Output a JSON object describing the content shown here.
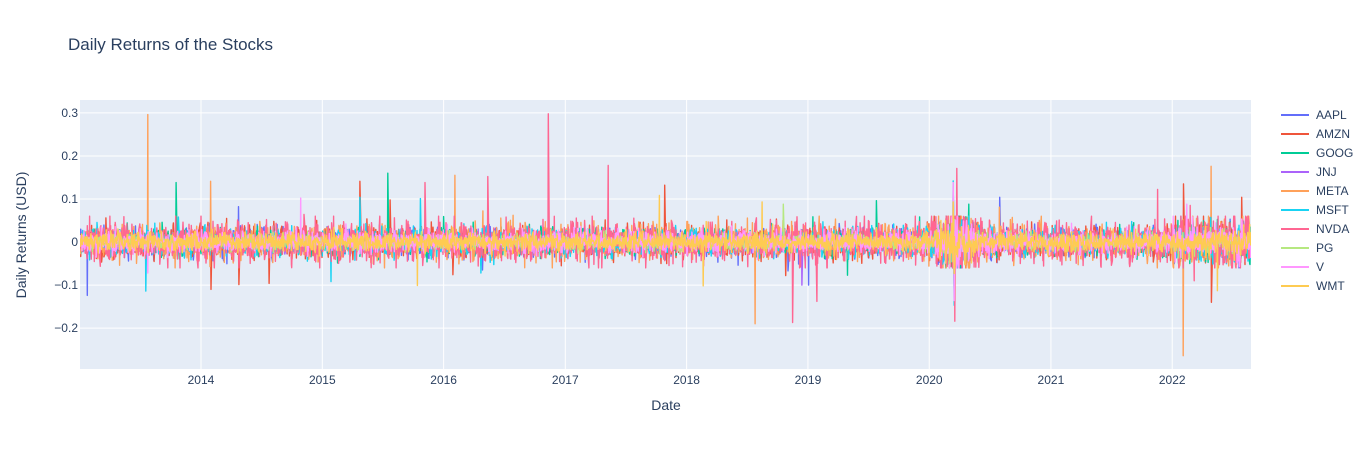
{
  "chart_data": {
    "type": "line",
    "title": "Daily Returns of the Stocks",
    "xlabel": "Date",
    "ylabel": "Daily Returns (USD)",
    "x_range": [
      "2013-01-02",
      "2022-08-26"
    ],
    "ylim": [
      -0.295,
      0.33
    ],
    "x_ticks": [
      "2014",
      "2015",
      "2016",
      "2017",
      "2018",
      "2019",
      "2020",
      "2021",
      "2022"
    ],
    "y_ticks": [
      {
        "value": 0.3,
        "label": "0.3"
      },
      {
        "value": 0.2,
        "label": "0.2"
      },
      {
        "value": 0.1,
        "label": "0.1"
      },
      {
        "value": 0,
        "label": "0"
      },
      {
        "value": -0.1,
        "label": "−0.1"
      },
      {
        "value": -0.2,
        "label": "−0.2"
      }
    ],
    "grid": true,
    "legend_position": "right",
    "series": [
      {
        "name": "AAPL",
        "color": "#636efa",
        "base_vol": 0.016,
        "spikes": [
          [
            "2013-01-24",
            -0.124
          ],
          [
            "2014-04-24",
            0.082
          ],
          [
            "2016-04-27",
            -0.065
          ],
          [
            "2018-11-02",
            -0.067
          ],
          [
            "2019-01-03",
            -0.1
          ],
          [
            "2020-03-13",
            0.12
          ],
          [
            "2020-07-31",
            0.104
          ],
          [
            "2022-04-29",
            -0.037
          ]
        ]
      },
      {
        "name": "AMZN",
        "color": "#ef553b",
        "base_vol": 0.018,
        "spikes": [
          [
            "2014-01-31",
            -0.11
          ],
          [
            "2014-04-25",
            -0.099
          ],
          [
            "2014-07-25",
            -0.096
          ],
          [
            "2015-04-24",
            0.141
          ],
          [
            "2015-07-24",
            0.098
          ],
          [
            "2016-01-29",
            -0.076
          ],
          [
            "2017-10-27",
            0.132
          ],
          [
            "2018-10-26",
            -0.078
          ],
          [
            "2020-03-13",
            0.064
          ],
          [
            "2022-02-04",
            0.135
          ],
          [
            "2022-04-29",
            -0.14
          ],
          [
            "2022-07-29",
            0.104
          ]
        ]
      },
      {
        "name": "GOOG",
        "color": "#00cc96",
        "base_vol": 0.015,
        "spikes": [
          [
            "2013-10-18",
            0.138
          ],
          [
            "2015-07-17",
            0.16
          ],
          [
            "2016-04-22",
            -0.054
          ],
          [
            "2019-04-30",
            -0.077
          ],
          [
            "2019-07-26",
            0.096
          ],
          [
            "2020-03-16",
            -0.111
          ],
          [
            "2020-04-29",
            0.088
          ]
        ]
      },
      {
        "name": "JNJ",
        "color": "#ab63fa",
        "base_vol": 0.009,
        "spikes": [
          [
            "2016-04-14",
            0.03
          ],
          [
            "2018-12-14",
            -0.1
          ],
          [
            "2020-03-13",
            0.08
          ],
          [
            "2020-03-16",
            -0.1
          ]
        ]
      },
      {
        "name": "META",
        "color": "#ffa15a",
        "base_vol": 0.02,
        "spikes": [
          [
            "2013-07-25",
            0.296
          ],
          [
            "2014-01-30",
            0.141
          ],
          [
            "2016-02-04",
            0.155
          ],
          [
            "2016-04-28",
            0.072
          ],
          [
            "2016-07-28",
            0.062
          ],
          [
            "2018-07-26",
            -0.19
          ],
          [
            "2020-07-30",
            0.081
          ],
          [
            "2022-02-03",
            -0.264
          ],
          [
            "2022-04-28",
            0.176
          ]
        ]
      },
      {
        "name": "MSFT",
        "color": "#19d3f3",
        "base_vol": 0.015,
        "spikes": [
          [
            "2013-07-19",
            -0.114
          ],
          [
            "2013-10-25",
            0.058
          ],
          [
            "2015-01-27",
            -0.092
          ],
          [
            "2015-04-24",
            0.104
          ],
          [
            "2015-10-23",
            0.101
          ],
          [
            "2016-04-22",
            -0.072
          ],
          [
            "2020-03-13",
            0.142
          ],
          [
            "2020-03-16",
            -0.147
          ]
        ]
      },
      {
        "name": "NVDA",
        "color": "#ff6692",
        "base_vol": 0.024,
        "spikes": [
          [
            "2014-11-07",
            0.064
          ],
          [
            "2015-11-06",
            0.138
          ],
          [
            "2016-05-13",
            0.152
          ],
          [
            "2016-11-11",
            0.298
          ],
          [
            "2017-05-10",
            0.178
          ],
          [
            "2018-11-16",
            -0.187
          ],
          [
            "2019-01-28",
            -0.138
          ],
          [
            "2020-03-18",
            -0.184
          ],
          [
            "2020-03-24",
            0.171
          ],
          [
            "2021-11-18",
            0.122
          ],
          [
            "2022-02-24",
            0.085
          ],
          [
            "2022-03-08",
            -0.09
          ]
        ]
      },
      {
        "name": "PG",
        "color": "#b6e880",
        "base_vol": 0.009,
        "spikes": [
          [
            "2018-10-19",
            0.088
          ],
          [
            "2020-03-13",
            0.12
          ],
          [
            "2020-03-16",
            -0.087
          ]
        ]
      },
      {
        "name": "V",
        "color": "#ff97ff",
        "base_vol": 0.013,
        "spikes": [
          [
            "2013-07-25",
            -0.072
          ],
          [
            "2014-10-28",
            0.102
          ],
          [
            "2020-03-13",
            0.138
          ],
          [
            "2020-03-16",
            -0.136
          ],
          [
            "2022-02-14",
            0.088
          ]
        ]
      },
      {
        "name": "WMT",
        "color": "#fecb52",
        "base_vol": 0.011,
        "spikes": [
          [
            "2015-10-14",
            -0.101
          ],
          [
            "2016-01-29",
            0.033
          ],
          [
            "2017-10-11",
            0.108
          ],
          [
            "2018-02-20",
            -0.102
          ],
          [
            "2018-08-16",
            0.093
          ],
          [
            "2020-03-13",
            0.093
          ],
          [
            "2020-03-16",
            -0.073
          ],
          [
            "2022-05-17",
            -0.113
          ]
        ]
      }
    ]
  }
}
